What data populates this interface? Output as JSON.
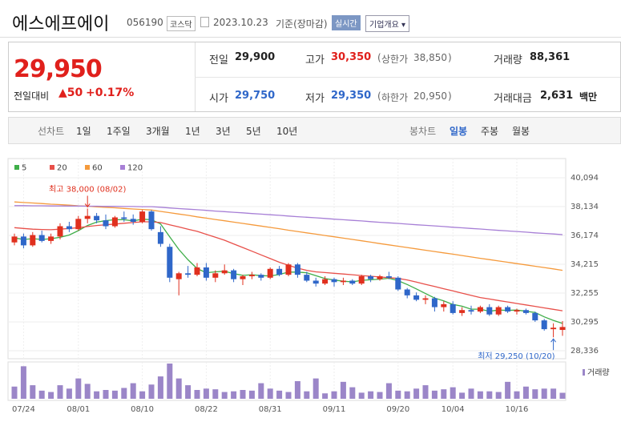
{
  "header": {
    "name": "에스에프에이",
    "code": "056190",
    "market": "코스닥",
    "date": "2023.10.23",
    "basis": "기준(장마감)",
    "realtime": "실시간",
    "company_info": "기업개요"
  },
  "quote": {
    "price": "29,950",
    "change_label": "전일대비",
    "change": "50",
    "change_pct": "+0.17%",
    "rows": [
      [
        {
          "label": "전일",
          "value": "29,900"
        },
        {
          "label": "고가",
          "value": "30,350",
          "note_label": "상한가",
          "note_value": "38,850"
        },
        {
          "label": "거래량",
          "value": "88,361"
        }
      ],
      [
        {
          "label": "시가",
          "value": "29,750"
        },
        {
          "label": "저가",
          "value": "29,350",
          "note_label": "하한가",
          "note_value": "20,950"
        },
        {
          "label": "거래대금",
          "value": "2,631",
          "unit": "백만"
        }
      ]
    ]
  },
  "tabs": {
    "line_label": "선차트",
    "periods": [
      "1일",
      "1주일",
      "3개월",
      "1년",
      "3년",
      "5년",
      "10년"
    ],
    "candle_label": "봉차트",
    "candle_periods": [
      "일봉",
      "주봉",
      "월봉"
    ]
  },
  "chart_data": {
    "type": "candlestick",
    "up_color": "#e0301e",
    "down_color": "#2f67c9",
    "categories": [
      null,
      "07/24",
      null,
      null,
      null,
      null,
      null,
      "08/01",
      null,
      null,
      null,
      null,
      null,
      null,
      "08/10",
      null,
      null,
      null,
      null,
      null,
      null,
      "08/22",
      null,
      null,
      null,
      null,
      null,
      null,
      "08/31",
      null,
      null,
      null,
      null,
      null,
      null,
      "09/11",
      null,
      null,
      null,
      null,
      null,
      null,
      "09/20",
      null,
      null,
      null,
      null,
      null,
      "10/04",
      null,
      null,
      null,
      null,
      null,
      null,
      "10/16",
      null,
      null,
      null,
      null,
      null
    ],
    "ohlc": [
      [
        35700,
        36300,
        35500,
        36100
      ],
      [
        36100,
        36300,
        35300,
        35500
      ],
      [
        35500,
        36400,
        35400,
        36200
      ],
      [
        36200,
        36500,
        35700,
        35800
      ],
      [
        35800,
        36300,
        35600,
        36100
      ],
      [
        36100,
        37000,
        35900,
        36800
      ],
      [
        36800,
        37100,
        36400,
        36600
      ],
      [
        36600,
        37500,
        36500,
        37300
      ],
      [
        37300,
        38000,
        37000,
        37500
      ],
      [
        37500,
        37700,
        37000,
        37200
      ],
      [
        37200,
        37600,
        36600,
        36800
      ],
      [
        36800,
        37500,
        36700,
        37400
      ],
      [
        37400,
        37800,
        37100,
        37300
      ],
      [
        37300,
        37600,
        36900,
        37100
      ],
      [
        37100,
        37900,
        37000,
        37800
      ],
      [
        37800,
        37900,
        36500,
        36600
      ],
      [
        36400,
        36800,
        35400,
        35600
      ],
      [
        35400,
        35600,
        33000,
        33300
      ],
      [
        33200,
        33700,
        32100,
        33600
      ],
      [
        33600,
        34100,
        33300,
        33500
      ],
      [
        33500,
        34300,
        33400,
        34000
      ],
      [
        34000,
        34300,
        33100,
        33300
      ],
      [
        33300,
        33800,
        33000,
        33600
      ],
      [
        33600,
        34200,
        33500,
        33800
      ],
      [
        33800,
        33900,
        33000,
        33200
      ],
      [
        33200,
        33500,
        32800,
        33400
      ],
      [
        33400,
        33700,
        33200,
        33500
      ],
      [
        33500,
        33600,
        33100,
        33300
      ],
      [
        33300,
        34000,
        33200,
        33900
      ],
      [
        33900,
        34100,
        33400,
        33500
      ],
      [
        33500,
        34300,
        33400,
        34200
      ],
      [
        34200,
        34300,
        33300,
        33500
      ],
      [
        33500,
        33700,
        33000,
        33100
      ],
      [
        33100,
        33300,
        32700,
        32900
      ],
      [
        32900,
        33400,
        32800,
        33200
      ],
      [
        33200,
        33300,
        32700,
        33000
      ],
      [
        33000,
        33300,
        32800,
        33100
      ],
      [
        33100,
        33200,
        32800,
        32900
      ],
      [
        32900,
        33500,
        32800,
        33400
      ],
      [
        33400,
        33500,
        33000,
        33200
      ],
      [
        33200,
        33500,
        33100,
        33400
      ],
      [
        33400,
        33700,
        33200,
        33300
      ],
      [
        33300,
        33400,
        32400,
        32500
      ],
      [
        32500,
        32600,
        31900,
        32100
      ],
      [
        32100,
        32300,
        31700,
        31800
      ],
      [
        31800,
        32100,
        31500,
        31900
      ],
      [
        31900,
        32000,
        31000,
        31300
      ],
      [
        31300,
        31700,
        31000,
        31500
      ],
      [
        31500,
        31700,
        30800,
        30900
      ],
      [
        30900,
        31300,
        30700,
        31100
      ],
      [
        31100,
        31400,
        30800,
        31000
      ],
      [
        31000,
        31400,
        30900,
        31300
      ],
      [
        31300,
        31500,
        30700,
        30800
      ],
      [
        30800,
        31400,
        30700,
        31300
      ],
      [
        31300,
        31400,
        30900,
        31000
      ],
      [
        31000,
        31200,
        30800,
        31100
      ],
      [
        31100,
        31200,
        30800,
        30900
      ],
      [
        30900,
        31000,
        30300,
        30400
      ],
      [
        30400,
        30500,
        29700,
        29800
      ],
      [
        29800,
        30200,
        29250,
        29900
      ],
      [
        29750,
        30350,
        29350,
        29950
      ]
    ],
    "series": [
      {
        "name": "5",
        "color": "#3fae49",
        "values": [
          36000,
          35900,
          35950,
          35900,
          35950,
          36050,
          36200,
          36500,
          36850,
          37080,
          37180,
          37240,
          37240,
          37160,
          37280,
          37240,
          36960,
          36080,
          35220,
          34520,
          33920,
          33640,
          33700,
          33740,
          33580,
          33460,
          33500,
          33440,
          33420,
          33520,
          33680,
          33680,
          33640,
          33440,
          33240,
          33140,
          33060,
          33020,
          33120,
          33160,
          33200,
          33260,
          33100,
          32840,
          32540,
          32220,
          31920,
          31720,
          31480,
          31360,
          31160,
          31160,
          31020,
          31100,
          31080,
          31100,
          31020,
          30940,
          30640,
          30400,
          30190
        ]
      },
      {
        "name": "20",
        "color": "#e8504a",
        "values": [
          36700,
          36650,
          36600,
          36580,
          36560,
          36600,
          36650,
          36700,
          36780,
          36850,
          36900,
          36950,
          37000,
          37050,
          37100,
          37100,
          37050,
          36900,
          36750,
          36600,
          36450,
          36250,
          36050,
          35850,
          35600,
          35350,
          35100,
          34850,
          34600,
          34350,
          34150,
          33950,
          33800,
          33700,
          33650,
          33600,
          33550,
          33500,
          33450,
          33400,
          33350,
          33300,
          33250,
          33150,
          33000,
          32850,
          32700,
          32550,
          32400,
          32250,
          32100,
          31950,
          31850,
          31750,
          31650,
          31550,
          31450,
          31350,
          31250,
          31150,
          31050
        ]
      },
      {
        "name": "60",
        "color": "#f59a3c",
        "values": [
          38450,
          38410,
          38380,
          38340,
          38300,
          38270,
          38230,
          38190,
          38160,
          38120,
          38080,
          38050,
          38010,
          37970,
          37940,
          37900,
          37810,
          37720,
          37630,
          37540,
          37440,
          37350,
          37260,
          37170,
          37080,
          36990,
          36900,
          36810,
          36720,
          36630,
          36530,
          36440,
          36350,
          36260,
          36170,
          36080,
          35990,
          35900,
          35810,
          35720,
          35620,
          35530,
          35440,
          35350,
          35260,
          35170,
          35080,
          34990,
          34900,
          34810,
          34710,
          34620,
          34530,
          34440,
          34350,
          34260,
          34170,
          34080,
          33990,
          33900,
          33800
        ]
      },
      {
        "name": "120",
        "color": "#a77fd6",
        "values": [
          38200,
          38200,
          38190,
          38190,
          38180,
          38180,
          38170,
          38170,
          38160,
          38160,
          38150,
          38150,
          38140,
          38140,
          38130,
          38130,
          38090,
          38040,
          38000,
          37960,
          37920,
          37880,
          37830,
          37790,
          37750,
          37710,
          37660,
          37620,
          37580,
          37540,
          37490,
          37450,
          37410,
          37370,
          37330,
          37280,
          37240,
          37200,
          37160,
          37110,
          37070,
          37030,
          36990,
          36940,
          36900,
          36860,
          36820,
          36780,
          36730,
          36690,
          36650,
          36610,
          36560,
          36520,
          36480,
          36440,
          36400,
          36350,
          36310,
          36270,
          36230
        ]
      }
    ],
    "ylim": [
      28336,
      40094
    ],
    "yticks": [
      {
        "value": 40094,
        "label": "40,094"
      },
      {
        "value": 38134,
        "label": "38,134"
      },
      {
        "value": 36174,
        "label": "36,174"
      },
      {
        "value": 34215,
        "label": "34,215"
      },
      {
        "value": 32255,
        "label": "32,255"
      },
      {
        "value": 30295,
        "label": "30,295"
      },
      {
        "value": 28336,
        "label": "28,336"
      }
    ],
    "grid": true,
    "volume": {
      "name": "거래량",
      "color": "#9b86c8",
      "ylim": [
        0,
        520000
      ],
      "values": [
        180000,
        480000,
        200000,
        120000,
        100000,
        200000,
        150000,
        300000,
        220000,
        110000,
        130000,
        120000,
        160000,
        230000,
        110000,
        210000,
        330000,
        520000,
        300000,
        200000,
        130000,
        150000,
        140000,
        100000,
        110000,
        130000,
        120000,
        230000,
        150000,
        120000,
        100000,
        260000,
        110000,
        300000,
        80000,
        110000,
        250000,
        170000,
        90000,
        110000,
        100000,
        230000,
        120000,
        110000,
        150000,
        200000,
        120000,
        140000,
        170000,
        90000,
        150000,
        110000,
        110000,
        100000,
        250000,
        110000,
        180000,
        140000,
        150000,
        150000,
        88361
      ]
    },
    "annotations": [
      {
        "text": "최고 38,000 (08/02)",
        "value": 38000,
        "color": "#e0301e"
      },
      {
        "text": "최저 29,250 (10/20)",
        "value": 29250,
        "color": "#2f67c9"
      }
    ]
  }
}
